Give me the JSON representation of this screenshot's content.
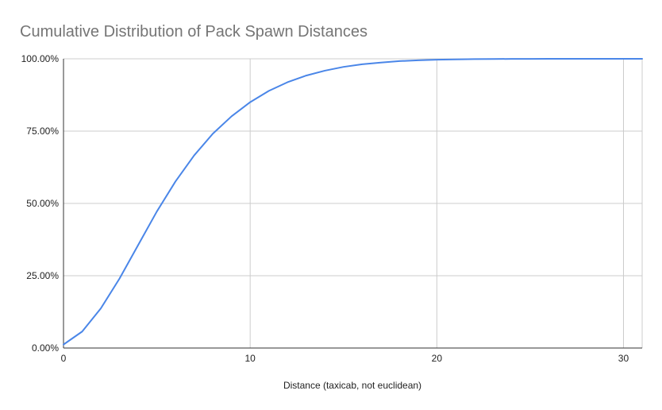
{
  "chart_data": {
    "type": "line",
    "title": "Cumulative Distribution of Pack Spawn Distances",
    "xlabel": "Distance (taxicab, not euclidean)",
    "ylabel": "",
    "xlim": [
      0,
      31
    ],
    "ylim": [
      0,
      1
    ],
    "x_ticks": [
      0,
      10,
      20,
      30
    ],
    "x_tick_labels": [
      "0",
      "10",
      "20",
      "30"
    ],
    "y_ticks": [
      0,
      0.25,
      0.5,
      0.75,
      1
    ],
    "y_tick_labels": [
      "0.00%",
      "25.00%",
      "50.00%",
      "75.00%",
      "100.00%"
    ],
    "grid": true,
    "legend": "none",
    "series": [
      {
        "color": "#4a86e8",
        "x": [
          0,
          1,
          2,
          3,
          4,
          5,
          6,
          7,
          8,
          9,
          10,
          11,
          12,
          13,
          14,
          15,
          16,
          17,
          18,
          19,
          20,
          21,
          22,
          23,
          24,
          25,
          26,
          27,
          28,
          29,
          30,
          31
        ],
        "y": [
          0.012,
          0.057,
          0.137,
          0.24,
          0.356,
          0.472,
          0.576,
          0.666,
          0.741,
          0.801,
          0.85,
          0.889,
          0.919,
          0.942,
          0.959,
          0.972,
          0.981,
          0.987,
          0.992,
          0.995,
          0.997,
          0.998,
          0.999,
          0.9993,
          0.9996,
          0.9998,
          0.9999,
          0.99995,
          1.0,
          1.0,
          1.0,
          1.0
        ]
      }
    ]
  }
}
